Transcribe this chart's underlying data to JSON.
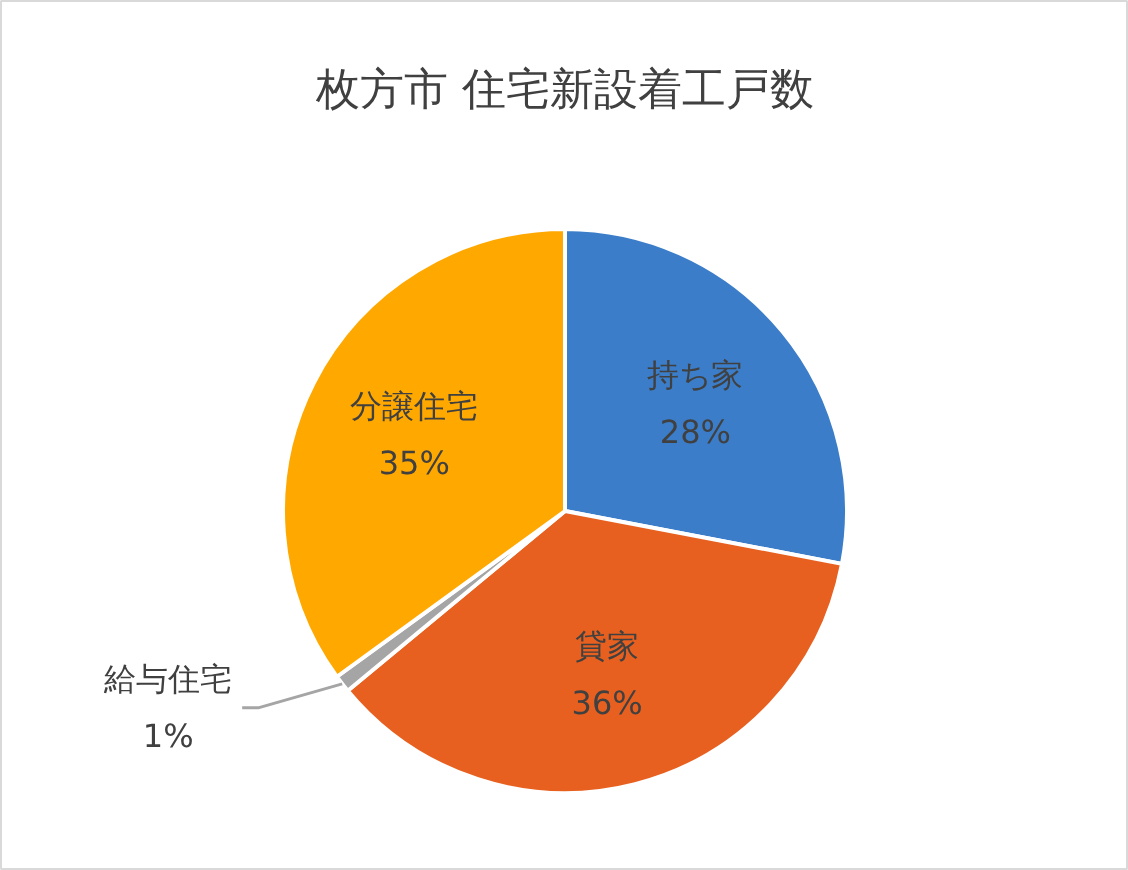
{
  "chart_data": {
    "type": "pie",
    "title": "枚方市 住宅新設着工戸数",
    "categories": [
      "持ち家",
      "貸家",
      "給与住宅",
      "分譲住宅"
    ],
    "values": [
      28,
      36,
      1,
      35
    ],
    "value_labels": [
      "28%",
      "36%",
      "1%",
      "35%"
    ],
    "colors": [
      "#3b7dc8",
      "#e8601f",
      "#a5a5a5",
      "#ffa800"
    ]
  }
}
